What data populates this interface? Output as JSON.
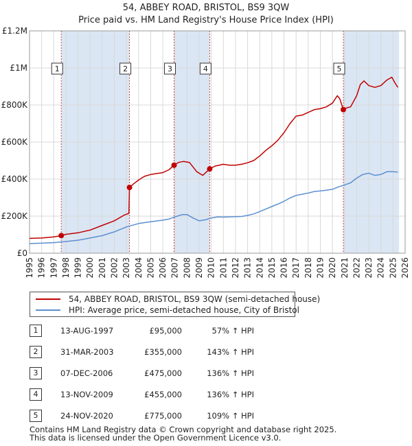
{
  "chart_data": {
    "type": "line",
    "title": "54, ABBEY ROAD, BRISTOL, BS9 3QW",
    "subtitle": "Price paid vs. HM Land Registry's House Price Index (HPI)",
    "xlim": [
      1995,
      2026
    ],
    "ylim": [
      0,
      1200000
    ],
    "x_ticks": [
      "1995",
      "1996",
      "1997",
      "1998",
      "1999",
      "2000",
      "2001",
      "2002",
      "2003",
      "2004",
      "2005",
      "2006",
      "2007",
      "2008",
      "2009",
      "2010",
      "2011",
      "2012",
      "2013",
      "2014",
      "2015",
      "2016",
      "2017",
      "2018",
      "2019",
      "2020",
      "2021",
      "2022",
      "2023",
      "2024",
      "2025",
      "2026"
    ],
    "y_ticks": [
      {
        "value": 0,
        "label": "£0"
      },
      {
        "value": 200000,
        "label": "£200K"
      },
      {
        "value": 400000,
        "label": "£400K"
      },
      {
        "value": 600000,
        "label": "£600K"
      },
      {
        "value": 800000,
        "label": "£800K"
      },
      {
        "value": 1000000,
        "label": "£1M"
      },
      {
        "value": 1200000,
        "label": "£1.2M"
      }
    ],
    "grid": true,
    "colors": {
      "property": "#c00000",
      "hpi": "#5b8fd0",
      "shade": "#dbe6f4",
      "vline": "#cc4444"
    },
    "shaded_ranges": [
      [
        1997.62,
        2003.25
      ],
      [
        2006.93,
        2009.87
      ],
      [
        2020.9,
        2025.5
      ]
    ],
    "sales": [
      {
        "n": "1",
        "x": 1997.62,
        "y": 95000
      },
      {
        "n": "2",
        "x": 2003.25,
        "y": 355000
      },
      {
        "n": "3",
        "x": 2006.93,
        "y": 475000
      },
      {
        "n": "4",
        "x": 2009.87,
        "y": 455000
      },
      {
        "n": "5",
        "x": 2020.9,
        "y": 775000
      }
    ],
    "series": [
      {
        "name": "54, ABBEY ROAD, BRISTOL, BS9 3QW (semi-detached house)",
        "points": [
          [
            1995,
            80000
          ],
          [
            1996,
            82000
          ],
          [
            1997,
            88000
          ],
          [
            1997.62,
            95000
          ],
          [
            1998,
            102000
          ],
          [
            1999,
            110000
          ],
          [
            2000,
            125000
          ],
          [
            2001,
            150000
          ],
          [
            2002,
            175000
          ],
          [
            2002.8,
            205000
          ],
          [
            2003.2,
            215000
          ],
          [
            2003.25,
            355000
          ],
          [
            2003.6,
            375000
          ],
          [
            2004,
            395000
          ],
          [
            2004.5,
            415000
          ],
          [
            2005,
            425000
          ],
          [
            2005.5,
            430000
          ],
          [
            2006,
            435000
          ],
          [
            2006.5,
            450000
          ],
          [
            2006.93,
            475000
          ],
          [
            2007.3,
            490000
          ],
          [
            2007.7,
            495000
          ],
          [
            2008.2,
            490000
          ],
          [
            2008.8,
            440000
          ],
          [
            2009.3,
            420000
          ],
          [
            2009.87,
            455000
          ],
          [
            2010.3,
            470000
          ],
          [
            2011,
            480000
          ],
          [
            2011.5,
            475000
          ],
          [
            2012,
            475000
          ],
          [
            2012.5,
            480000
          ],
          [
            2013,
            488000
          ],
          [
            2013.5,
            500000
          ],
          [
            2014,
            525000
          ],
          [
            2014.5,
            555000
          ],
          [
            2015,
            580000
          ],
          [
            2015.5,
            610000
          ],
          [
            2016,
            650000
          ],
          [
            2016.5,
            700000
          ],
          [
            2017,
            740000
          ],
          [
            2017.5,
            745000
          ],
          [
            2018,
            760000
          ],
          [
            2018.5,
            775000
          ],
          [
            2019,
            780000
          ],
          [
            2019.5,
            790000
          ],
          [
            2020,
            810000
          ],
          [
            2020.4,
            850000
          ],
          [
            2020.6,
            835000
          ],
          [
            2020.9,
            775000
          ],
          [
            2021.2,
            785000
          ],
          [
            2021.5,
            790000
          ],
          [
            2022,
            850000
          ],
          [
            2022.3,
            910000
          ],
          [
            2022.6,
            930000
          ],
          [
            2023,
            905000
          ],
          [
            2023.5,
            895000
          ],
          [
            2024,
            905000
          ],
          [
            2024.5,
            935000
          ],
          [
            2024.9,
            950000
          ],
          [
            2025.2,
            915000
          ],
          [
            2025.4,
            895000
          ]
        ]
      },
      {
        "name": "HPI: Average price, semi-detached house, City of Bristol",
        "points": [
          [
            1995,
            52000
          ],
          [
            1996,
            54000
          ],
          [
            1997,
            57000
          ],
          [
            1998,
            63000
          ],
          [
            1999,
            70000
          ],
          [
            2000,
            82000
          ],
          [
            2001,
            95000
          ],
          [
            2002,
            115000
          ],
          [
            2003,
            142000
          ],
          [
            2004,
            160000
          ],
          [
            2005,
            170000
          ],
          [
            2006,
            178000
          ],
          [
            2006.5,
            184000
          ],
          [
            2007,
            196000
          ],
          [
            2007.6,
            208000
          ],
          [
            2008,
            208000
          ],
          [
            2008.5,
            190000
          ],
          [
            2009,
            175000
          ],
          [
            2009.5,
            180000
          ],
          [
            2010,
            190000
          ],
          [
            2010.5,
            196000
          ],
          [
            2011,
            195000
          ],
          [
            2012,
            197000
          ],
          [
            2012.5,
            198000
          ],
          [
            2013,
            204000
          ],
          [
            2013.5,
            212000
          ],
          [
            2014,
            225000
          ],
          [
            2014.5,
            238000
          ],
          [
            2015,
            252000
          ],
          [
            2015.5,
            265000
          ],
          [
            2016,
            280000
          ],
          [
            2016.5,
            298000
          ],
          [
            2017,
            312000
          ],
          [
            2017.5,
            318000
          ],
          [
            2018,
            325000
          ],
          [
            2018.5,
            333000
          ],
          [
            2019,
            336000
          ],
          [
            2019.5,
            340000
          ],
          [
            2020,
            345000
          ],
          [
            2020.5,
            358000
          ],
          [
            2021,
            368000
          ],
          [
            2021.5,
            380000
          ],
          [
            2022,
            405000
          ],
          [
            2022.5,
            425000
          ],
          [
            2023,
            432000
          ],
          [
            2023.5,
            420000
          ],
          [
            2024,
            425000
          ],
          [
            2024.5,
            440000
          ],
          [
            2025,
            440000
          ],
          [
            2025.4,
            438000
          ]
        ]
      }
    ]
  },
  "legend": {
    "property_label": "54, ABBEY ROAD, BRISTOL, BS9 3QW (semi-detached house)",
    "hpi_label": "HPI: Average price, semi-detached house, City of Bristol"
  },
  "sales_table": [
    {
      "n": "1",
      "date": "13-AUG-1997",
      "price": "£95,000",
      "hpi": "57% ↑ HPI"
    },
    {
      "n": "2",
      "date": "31-MAR-2003",
      "price": "£355,000",
      "hpi": "143% ↑ HPI"
    },
    {
      "n": "3",
      "date": "07-DEC-2006",
      "price": "£475,000",
      "hpi": "136% ↑ HPI"
    },
    {
      "n": "4",
      "date": "13-NOV-2009",
      "price": "£455,000",
      "hpi": "136% ↑ HPI"
    },
    {
      "n": "5",
      "date": "24-NOV-2020",
      "price": "£775,000",
      "hpi": "109% ↑ HPI"
    }
  ],
  "footer": {
    "line1": "Contains HM Land Registry data © Crown copyright and database right 2025.",
    "line2": "This data is licensed under the Open Government Licence v3.0."
  }
}
